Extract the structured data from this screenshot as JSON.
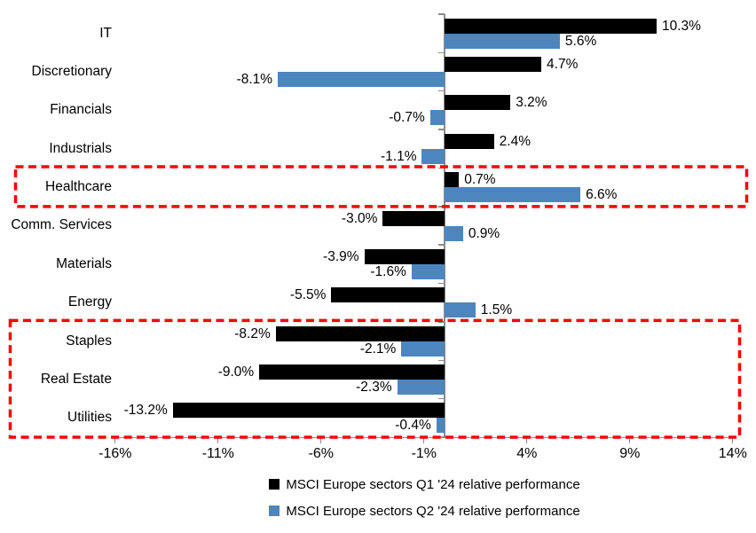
{
  "chart_data": {
    "type": "bar",
    "orientation": "horizontal",
    "title": "",
    "categories": [
      "IT",
      "Discretionary",
      "Financials",
      "Industrials",
      "Healthcare",
      "Comm. Services",
      "Materials",
      "Energy",
      "Staples",
      "Real Estate",
      "Utilities"
    ],
    "series": [
      {
        "name": "MSCI Europe sectors Q1 '24 relative performance",
        "color": "#000000",
        "values": [
          10.3,
          4.7,
          3.2,
          2.4,
          0.7,
          -3.0,
          -3.9,
          -5.5,
          -8.2,
          -9.0,
          -13.2
        ],
        "labels": [
          "10.3%",
          "4.7%",
          "3.2%",
          "2.4%",
          "0.7%",
          "-3.0%",
          "-3.9%",
          "-5.5%",
          "-8.2%",
          "-9.0%",
          "-13.2%"
        ]
      },
      {
        "name": "MSCI Europe sectors Q2 '24 relative performance",
        "color": "#4D86BE",
        "values": [
          5.6,
          -8.1,
          -0.7,
          -1.1,
          6.6,
          0.9,
          -1.6,
          1.5,
          -2.1,
          -2.3,
          -0.4
        ],
        "labels": [
          "5.6%",
          "-8.1%",
          "-0.7%",
          "-1.1%",
          "6.6%",
          "0.9%",
          "-1.6%",
          "1.5%",
          "-2.1%",
          "-2.3%",
          "-0.4%"
        ]
      }
    ],
    "x_axis": {
      "tick_labels": [
        "-16%",
        "-11%",
        "-6%",
        "-1%",
        "4%",
        "9%",
        "14%"
      ],
      "tick_values": [
        -16,
        -11,
        -6,
        -1,
        4,
        9,
        14
      ],
      "xlim": [
        -16,
        14
      ],
      "grid": false
    },
    "legend_position": "bottom",
    "highlights": [
      {
        "categories": [
          "Healthcare"
        ],
        "color": "#FF0000",
        "style": "dashed-rectangle"
      },
      {
        "categories": [
          "Staples",
          "Real Estate",
          "Utilities"
        ],
        "color": "#FF0000",
        "style": "dashed-rectangle"
      }
    ]
  }
}
